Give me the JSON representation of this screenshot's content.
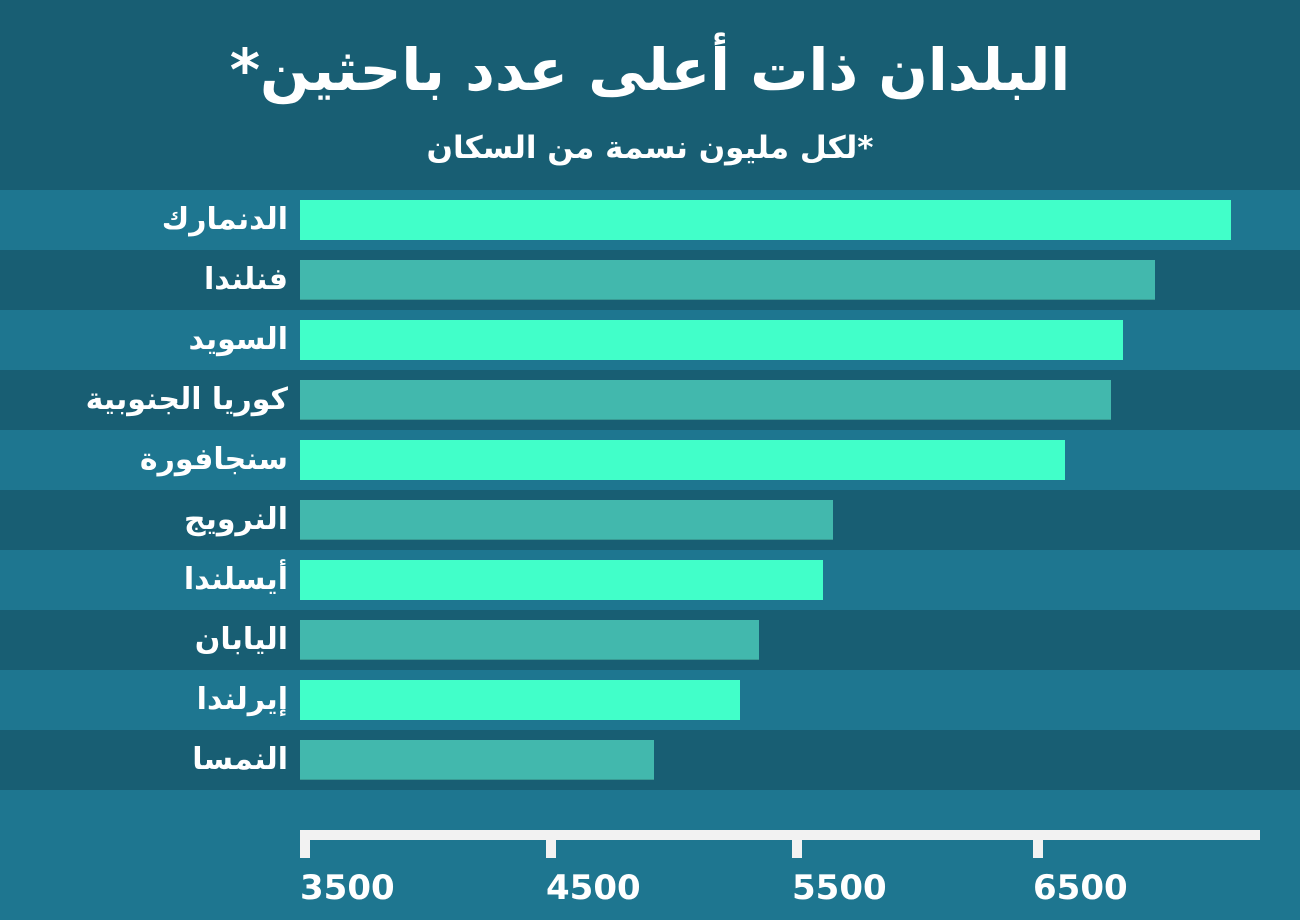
{
  "header": {
    "title": "البلدان ذات أعلى عدد باحثين*",
    "subtitle": "*لكل مليون نسمة من السكان"
  },
  "colors": {
    "background_light": "#1e7690",
    "background_dark": "#185e73",
    "bar_bright": "#41ffc9",
    "bar_muted": "#42b8ad",
    "axis": "#f2f2f2"
  },
  "axis": {
    "ticks": [
      "3500",
      "4500",
      "5500",
      "6500"
    ]
  },
  "rows": [
    {
      "label": "الدنمارك",
      "value": 7290
    },
    {
      "label": "فنلندا",
      "value": 6980
    },
    {
      "label": "السويد",
      "value": 6850
    },
    {
      "label": "كوريا الجنوبية",
      "value": 6800
    },
    {
      "label": "سنجافورة",
      "value": 6610
    },
    {
      "label": "النرويج",
      "value": 5660
    },
    {
      "label": "أيسلندا",
      "value": 5620
    },
    {
      "label": "اليابان",
      "value": 5360
    },
    {
      "label": "إيرلندا",
      "value": 5280
    },
    {
      "label": "النمسا",
      "value": 4930
    }
  ],
  "chart_data": {
    "type": "bar",
    "orientation": "horizontal",
    "title": "البلدان ذات أعلى عدد باحثين*",
    "subtitle": "*لكل مليون نسمة من السكان",
    "xlabel": "",
    "ylabel": "",
    "categories": [
      "الدنمارك",
      "فنلندا",
      "السويد",
      "كوريا الجنوبية",
      "سنجافورة",
      "النرويج",
      "أيسلندا",
      "اليابان",
      "إيرلندا",
      "النمسا"
    ],
    "values": [
      7290,
      6980,
      6850,
      6800,
      6610,
      5660,
      5620,
      5360,
      5280,
      4930
    ],
    "x_ticks": [
      3500,
      4500,
      5500,
      6500
    ],
    "xlim": [
      3500,
      7400
    ],
    "grid": false,
    "legend": null
  }
}
